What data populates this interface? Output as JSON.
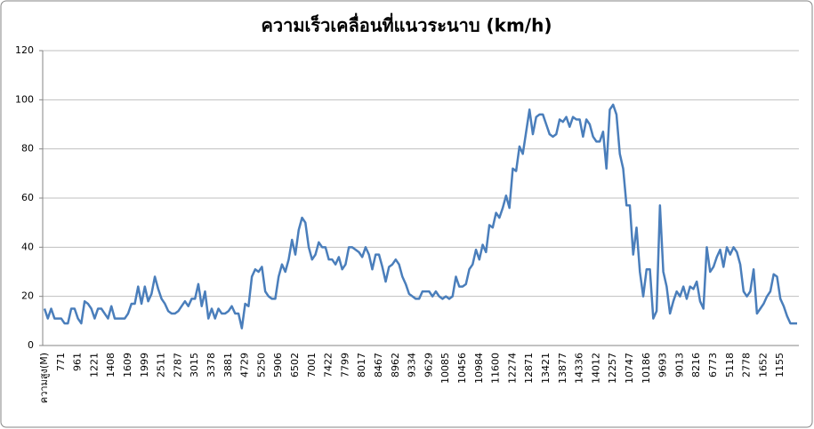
{
  "chart_data": {
    "type": "line",
    "title": "ความเร็วเคลื่อนที่แนวระนาบ (km/h)",
    "categories": [
      "ความสูง(M)",
      null,
      null,
      null,
      null,
      "771",
      null,
      null,
      null,
      null,
      "961",
      null,
      null,
      null,
      null,
      "1221",
      null,
      null,
      null,
      null,
      "1408",
      null,
      null,
      null,
      null,
      "1609",
      null,
      null,
      null,
      null,
      "1999",
      null,
      null,
      null,
      null,
      "2511",
      null,
      null,
      null,
      null,
      "2787",
      null,
      null,
      null,
      null,
      "3015",
      null,
      null,
      null,
      null,
      "3378",
      null,
      null,
      null,
      null,
      "3881",
      null,
      null,
      null,
      null,
      "4729",
      null,
      null,
      null,
      null,
      "5250",
      null,
      null,
      null,
      null,
      "5906",
      null,
      null,
      null,
      null,
      "6502",
      null,
      null,
      null,
      null,
      "7001",
      null,
      null,
      null,
      null,
      "7422",
      null,
      null,
      null,
      null,
      "7799",
      null,
      null,
      null,
      null,
      "8017",
      null,
      null,
      null,
      null,
      "8467",
      null,
      null,
      null,
      null,
      "8962",
      null,
      null,
      null,
      null,
      "9334",
      null,
      null,
      null,
      null,
      "9629",
      null,
      null,
      null,
      null,
      "10085",
      null,
      null,
      null,
      null,
      "10456",
      null,
      null,
      null,
      null,
      "10984",
      null,
      null,
      null,
      null,
      "11600",
      null,
      null,
      null,
      null,
      "12274",
      null,
      null,
      null,
      null,
      "12871",
      null,
      null,
      null,
      null,
      "13421",
      null,
      null,
      null,
      null,
      "13877",
      null,
      null,
      null,
      null,
      "14336",
      null,
      null,
      null,
      null,
      "14012",
      null,
      null,
      null,
      null,
      "12257",
      null,
      null,
      null,
      null,
      "10747",
      null,
      null,
      null,
      null,
      "10186",
      null,
      null,
      null,
      null,
      "9693",
      null,
      null,
      null,
      null,
      "9013",
      null,
      null,
      null,
      null,
      "8216",
      null,
      null,
      null,
      null,
      "6773",
      null,
      null,
      null,
      null,
      "5118",
      null,
      null,
      null,
      null,
      "2778",
      null,
      null,
      null,
      null,
      "1652",
      null,
      null,
      null,
      null,
      "1155",
      null,
      null,
      null,
      null,
      null
    ],
    "series": [
      {
        "color": "#4a7ebb",
        "values": [
          15,
          11,
          15,
          11,
          11,
          11,
          9,
          9,
          15,
          15,
          11,
          9,
          18,
          17,
          15,
          11,
          15,
          15,
          13,
          11,
          16,
          11,
          11,
          11,
          11,
          13,
          17,
          17,
          24,
          17,
          24,
          18,
          21,
          28,
          23,
          19,
          17,
          14,
          13,
          13,
          14,
          16,
          18,
          16,
          19,
          19,
          25,
          16,
          22,
          11,
          15,
          11,
          15,
          13,
          13,
          14,
          16,
          13,
          13,
          7,
          17,
          16,
          28,
          31,
          30,
          32,
          22,
          20,
          19,
          19,
          28,
          33,
          30,
          35,
          43,
          37,
          47,
          52,
          50,
          40,
          35,
          37,
          42,
          40,
          40,
          35,
          35,
          33,
          36,
          31,
          33,
          40,
          40,
          39,
          38,
          36,
          40,
          37,
          31,
          37,
          37,
          32,
          26,
          32,
          33,
          35,
          33,
          28,
          25,
          21,
          20,
          19,
          19,
          22,
          22,
          22,
          20,
          22,
          20,
          19,
          20,
          19,
          20,
          28,
          24,
          24,
          25,
          31,
          33,
          39,
          35,
          41,
          38,
          49,
          48,
          54,
          52,
          56,
          61,
          56,
          72,
          71,
          81,
          78,
          87,
          96,
          86,
          93,
          94,
          94,
          90,
          86,
          85,
          86,
          92,
          91,
          93,
          89,
          93,
          92,
          92,
          85,
          92,
          90,
          85,
          83,
          83,
          87,
          72,
          96,
          98,
          94,
          78,
          72,
          57,
          57,
          37,
          48,
          30,
          20,
          31,
          31,
          11,
          14,
          57,
          30,
          24,
          13,
          18,
          22,
          20,
          24,
          19,
          24,
          23,
          26,
          18,
          15,
          40,
          30,
          32,
          36,
          39,
          32,
          40,
          37,
          40,
          38,
          33,
          22,
          20,
          22,
          31,
          13,
          15,
          17,
          20,
          22,
          29,
          28,
          19,
          16,
          12,
          9,
          9,
          9
        ]
      }
    ],
    "ylim": [
      0,
      120
    ],
    "yticks": [
      0,
      20,
      40,
      60,
      80,
      100,
      120
    ],
    "grid": true
  }
}
